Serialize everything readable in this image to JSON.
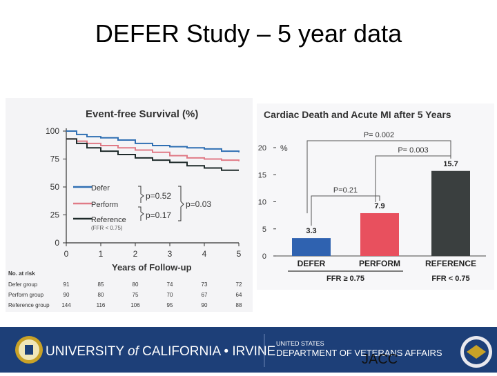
{
  "slide": {
    "title": "DEFER Study – 5 year data",
    "source": "JACC"
  },
  "footer": {
    "left_org_1": "UNIVERSITY",
    "left_org_of": "of",
    "left_org_2": "CALIFORNIA",
    "left_org_sep": "•",
    "left_org_3": "IRVINE",
    "right_org_top": "UNITED STATES",
    "right_org_bottom": "DEPARTMENT OF VETERANS AFFAIRS",
    "colors": {
      "bar": "#1d3f78",
      "text": "#ffffff",
      "seal_gold": "#c9a227"
    }
  },
  "chart_data": [
    {
      "type": "line",
      "title": "Event-free Survival (%)",
      "xlabel": "Years of Follow-up",
      "ylabel": "",
      "xlim": [
        0,
        5
      ],
      "ylim": [
        0,
        100
      ],
      "xticks": [
        0,
        1,
        2,
        3,
        4,
        5
      ],
      "yticks": [
        0,
        25,
        50,
        75,
        100
      ],
      "series": [
        {
          "name": "Defer",
          "color": "#2f6fb3",
          "x": [
            0,
            0.3,
            0.6,
            1,
            1.5,
            2,
            2.5,
            3,
            3.5,
            4,
            4.5,
            5
          ],
          "y": [
            100,
            97,
            95,
            94,
            92,
            89,
            87,
            86,
            85,
            84,
            82,
            81
          ]
        },
        {
          "name": "Perform",
          "color": "#e07a86",
          "x": [
            0,
            0.3,
            0.6,
            1,
            1.5,
            2,
            2.5,
            3,
            3.5,
            4,
            4.5,
            5
          ],
          "y": [
            93,
            91,
            89,
            87,
            85,
            83,
            81,
            78,
            76,
            75,
            74,
            73
          ]
        },
        {
          "name": "Reference",
          "color": "#1e2a2a",
          "x": [
            0,
            0.3,
            0.6,
            1,
            1.5,
            2,
            2.5,
            3,
            3.5,
            4,
            4.5,
            5
          ],
          "y": [
            93,
            89,
            85,
            82,
            79,
            76,
            74,
            72,
            69,
            67,
            65,
            65
          ]
        }
      ],
      "legend": {
        "entries": [
          "Defer",
          "Perform",
          "Reference"
        ],
        "reference_note": "(FFR < 0.75)",
        "placement": "bottom-left"
      },
      "p_values": {
        "defer_vs_perform": "p=0.52",
        "defer_vs_reference": "p=0.17",
        "group_vs_reference": "p=0.03"
      },
      "risk_table": {
        "header": "No. at risk",
        "rows": [
          {
            "group": "Defer group",
            "values": [
              "91",
              "85",
              "80",
              "74",
              "73",
              "72"
            ]
          },
          {
            "group": "Perform group",
            "values": [
              "90",
              "80",
              "75",
              "70",
              "67",
              "64"
            ]
          },
          {
            "group": "Reference group",
            "values": [
              "144",
              "116",
              "106",
              "95",
              "90",
              "88"
            ]
          }
        ]
      }
    },
    {
      "type": "bar",
      "title": "Cardiac Death and Acute MI after 5 Years",
      "ylabel": "%",
      "ylim": [
        0,
        20
      ],
      "yticks": [
        0,
        5,
        10,
        15,
        20
      ],
      "categories": [
        "DEFER",
        "PERFORM",
        "REFERENCE"
      ],
      "values": [
        3.3,
        7.9,
        15.7
      ],
      "value_labels": [
        "3.3",
        "7.9",
        "15.7"
      ],
      "colors": [
        "#2f62b0",
        "#e8505e",
        "#3a3f3f"
      ],
      "group_labels": [
        {
          "label": "FFR ≥ 0.75",
          "spans": [
            "DEFER",
            "PERFORM"
          ]
        },
        {
          "label": "FFR < 0.75",
          "spans": [
            "REFERENCE"
          ]
        }
      ],
      "comparisons": [
        {
          "label": "P= 0.002",
          "between": [
            "DEFER",
            "REFERENCE"
          ]
        },
        {
          "label": "P= 0.003",
          "between": [
            "PERFORM",
            "REFERENCE"
          ]
        },
        {
          "label": "P=0.21",
          "between": [
            "DEFER",
            "PERFORM"
          ]
        }
      ]
    }
  ]
}
